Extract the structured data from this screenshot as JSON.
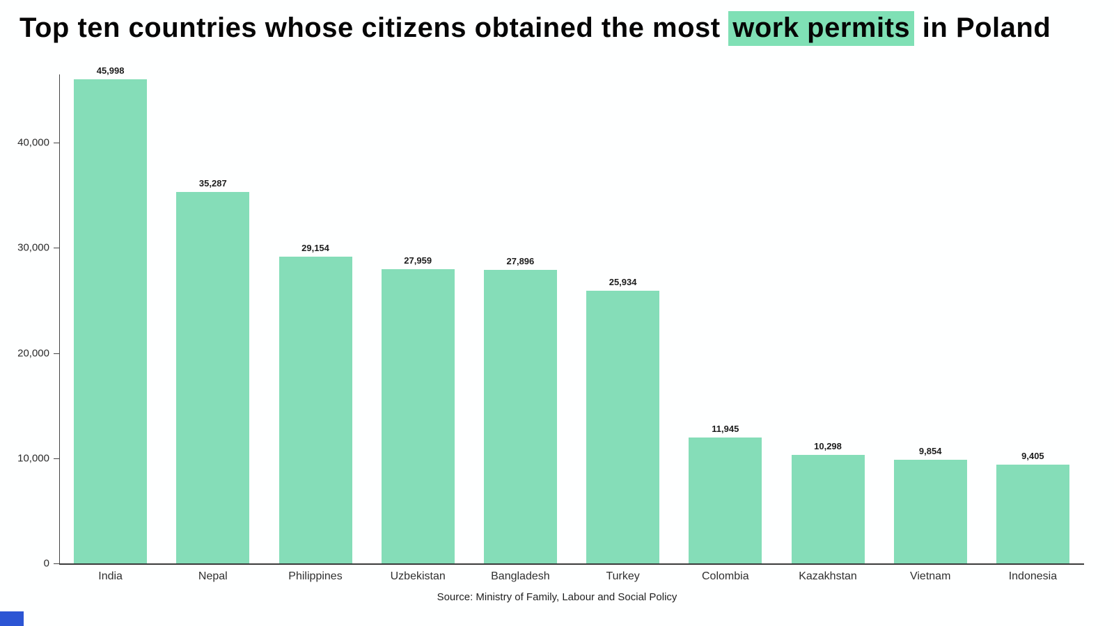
{
  "title": {
    "prefix": "Top ten countries whose citizens obtained the most ",
    "highlight": "work permits",
    "suffix": " in Poland"
  },
  "source": "Source: Ministry of Family, Labour and Social Policy",
  "colors": {
    "bar": "#85ddb8",
    "highlight": "#7fe0b5",
    "axis": "#3a3a3a",
    "blue_strip": "#2c55d4"
  },
  "chart_data": {
    "type": "bar",
    "title": "Top ten countries whose citizens obtained the most work permits in Poland",
    "categories": [
      "India",
      "Nepal",
      "Philippines",
      "Uzbekistan",
      "Bangladesh",
      "Turkey",
      "Colombia",
      "Kazakhstan",
      "Vietnam",
      "Indonesia"
    ],
    "values": [
      45998,
      35287,
      29154,
      27959,
      27896,
      25934,
      11945,
      10298,
      9854,
      9405
    ],
    "value_labels": [
      "45,998",
      "35,287",
      "29,154",
      "27,959",
      "27,896",
      "25,934",
      "11,945",
      "10,298",
      "9,854",
      "9,405"
    ],
    "xlabel": "",
    "ylabel": "",
    "ylim": [
      0,
      46500
    ],
    "yticks": [
      0,
      10000,
      20000,
      30000,
      40000
    ],
    "ytick_labels": [
      "0",
      "10,000",
      "20,000",
      "30,000",
      "40,000"
    ],
    "grid": false,
    "legend": null,
    "bar_color": "#85ddb8",
    "source": "Source: Ministry of Family, Labour and Social Policy"
  }
}
